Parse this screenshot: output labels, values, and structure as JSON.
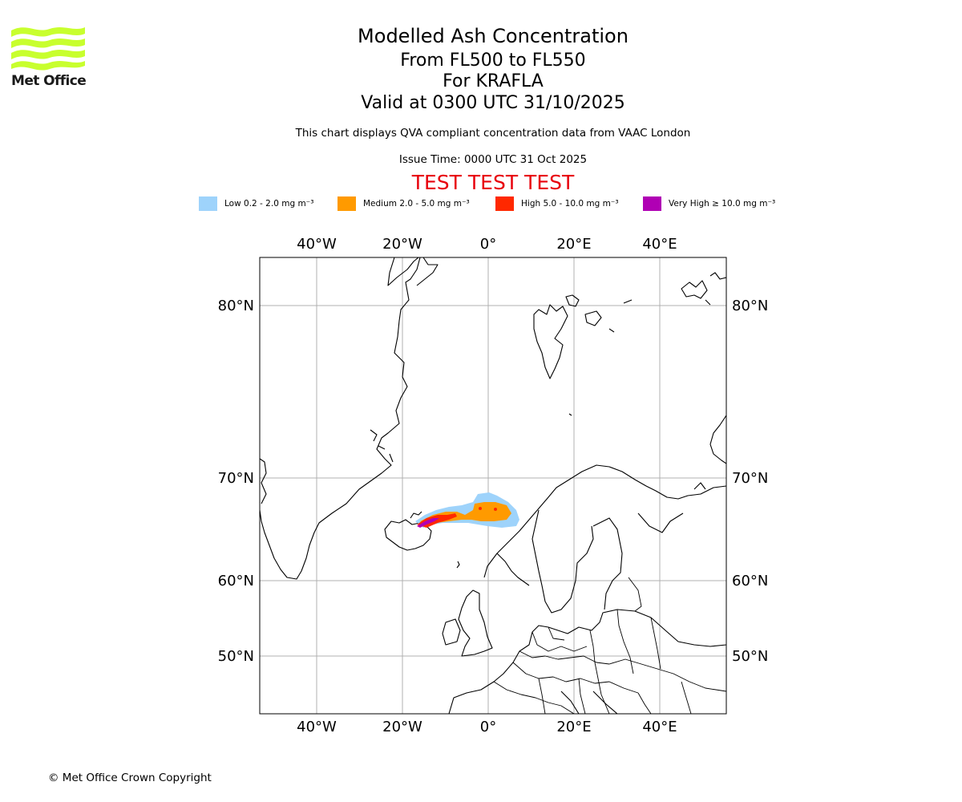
{
  "logo": {
    "name": "Met Office",
    "wave_color": "#c8ff2e"
  },
  "header": {
    "title": "Modelled Ash Concentration",
    "level_range": "From FL500 to FL550",
    "volcano": "For KRAFLA",
    "valid_time": "Valid at 0300 UTC 31/10/2025",
    "compliance_note": "This chart displays QVA compliant concentration data from VAAC London",
    "issue_time": "Issue Time: 0000 UTC 31 Oct 2025",
    "test_banner": "TEST TEST TEST"
  },
  "legend": [
    {
      "label": "Low 0.2 - 2.0 mg m⁻³",
      "color": "#9ed3fb"
    },
    {
      "label": "Medium 2.0 - 5.0 mg m⁻³",
      "color": "#ff9a00"
    },
    {
      "label": "High 5.0 - 10.0 mg m⁻³",
      "color": "#ff2800"
    },
    {
      "label": "Very High ≥ 10.0 mg m⁻³",
      "color": "#b000b4"
    }
  ],
  "map": {
    "longitude_ticks": [
      "40°W",
      "20°W",
      "0°",
      "20°E",
      "40°E"
    ],
    "latitude_ticks": [
      "80°N",
      "70°N",
      "60°N",
      "50°N"
    ]
  },
  "footer": {
    "copyright": "© Met Office Crown Copyright"
  }
}
